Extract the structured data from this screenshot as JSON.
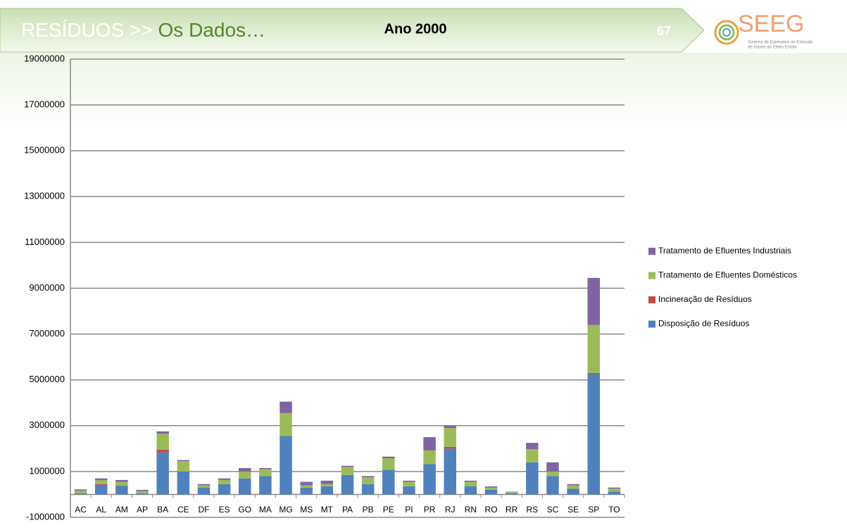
{
  "header": {
    "section": "RESÍDUOS",
    "separator": ">>",
    "subtitle": "Os Dados…",
    "page": "67"
  },
  "logo": {
    "name": "SEEG",
    "line1": "Sistema de Estimativa de Emissão",
    "line2": "de Gases do Efeito Estufa"
  },
  "chart_data": {
    "type": "stacked_bar",
    "title": "Ano 2000",
    "categories": [
      "AC",
      "AL",
      "AM",
      "AP",
      "BA",
      "CE",
      "DF",
      "ES",
      "GO",
      "MA",
      "MG",
      "MS",
      "MT",
      "PA",
      "PB",
      "PE",
      "PI",
      "PR",
      "RJ",
      "RN",
      "RO",
      "RR",
      "RS",
      "SC",
      "SE",
      "SP",
      "TO"
    ],
    "series": [
      {
        "name": "Disposição  de Resíduos",
        "color": "#4f81bd",
        "values": [
          50000,
          400000,
          380000,
          50000,
          1830000,
          1000000,
          300000,
          450000,
          700000,
          800000,
          2550000,
          300000,
          350000,
          850000,
          450000,
          1080000,
          350000,
          1320000,
          2000000,
          350000,
          200000,
          50000,
          1400000,
          800000,
          250000,
          5250000,
          120000
        ]
      },
      {
        "name": "Incineração de Resíduos",
        "color": "#c0504d",
        "values": [
          0,
          50000,
          0,
          0,
          120000,
          0,
          0,
          0,
          0,
          0,
          0,
          0,
          0,
          0,
          0,
          0,
          0,
          0,
          80000,
          0,
          0,
          0,
          0,
          0,
          0,
          50000,
          0
        ]
      },
      {
        "name": "Tratamento de Efluentes Domésticos",
        "color": "#9bbb59",
        "values": [
          120000,
          170000,
          170000,
          100000,
          700000,
          450000,
          100000,
          180000,
          300000,
          300000,
          1000000,
          100000,
          100000,
          350000,
          300000,
          500000,
          200000,
          600000,
          820000,
          200000,
          100000,
          50000,
          580000,
          200000,
          150000,
          2100000,
          130000
        ]
      },
      {
        "name": "Tratamento de Efluentes Industriais",
        "color": "#8064a2",
        "values": [
          50000,
          80000,
          80000,
          50000,
          100000,
          50000,
          50000,
          70000,
          150000,
          50000,
          500000,
          150000,
          150000,
          50000,
          50000,
          70000,
          50000,
          580000,
          100000,
          50000,
          50000,
          20000,
          270000,
          400000,
          50000,
          2050000,
          50000
        ]
      }
    ],
    "ylim": [
      -1000000,
      19000000
    ],
    "yticks": [
      -1000000,
      1000000,
      3000000,
      5000000,
      7000000,
      9000000,
      11000000,
      13000000,
      15000000,
      17000000,
      19000000
    ],
    "grid": true,
    "legend": "right"
  }
}
